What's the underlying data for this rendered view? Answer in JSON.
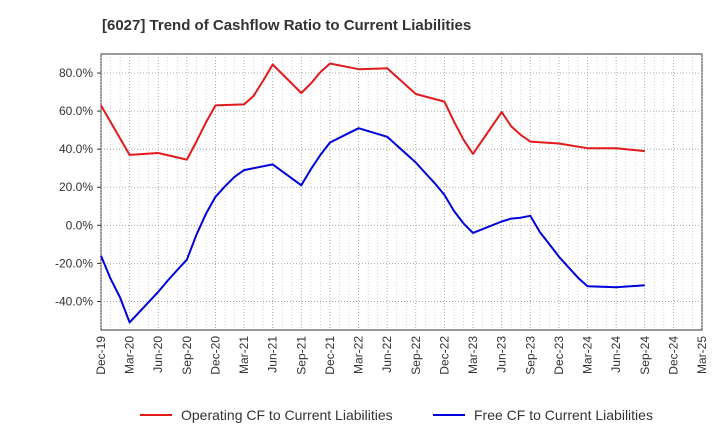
{
  "chart_data": {
    "type": "line",
    "title": "[6027]  Trend of Cashflow Ratio to Current Liabilities",
    "xlabel": "",
    "ylabel": "",
    "x_ticks": [
      "Dec-19",
      "Mar-20",
      "Jun-20",
      "Sep-20",
      "Dec-20",
      "Mar-21",
      "Jun-21",
      "Sep-21",
      "Dec-21",
      "Mar-22",
      "Jun-22",
      "Sep-22",
      "Dec-22",
      "Mar-23",
      "Jun-23",
      "Sep-23",
      "Dec-23",
      "Mar-24",
      "Jun-24",
      "Sep-24",
      "Dec-24",
      "Mar-25"
    ],
    "y_ticks": [
      "80.0%",
      "60.0%",
      "40.0%",
      "20.0%",
      "0.0%",
      "-20.0%",
      "-40.0%"
    ],
    "y_tick_values": [
      80,
      60,
      40,
      20,
      0,
      -20,
      -40
    ],
    "ylim": [
      -55,
      90
    ],
    "grid": true,
    "legend_position": "bottom",
    "series": [
      {
        "name": "Operating CF to Current Liabilities",
        "color": "#e31a1c",
        "x": [
          "Dec-19",
          "Mar-20",
          "Jun-20",
          "Sep-20",
          "Oct-20",
          "Nov-20",
          "Dec-20",
          "Mar-21",
          "Apr-21",
          "May-21",
          "Jun-21",
          "Sep-21",
          "Oct-21",
          "Nov-21",
          "Dec-21",
          "Mar-22",
          "Jun-22",
          "Sep-22",
          "Dec-22",
          "Jan-23",
          "Feb-23",
          "Mar-23",
          "Jun-23",
          "Jul-23",
          "Aug-23",
          "Sep-23",
          "Dec-23",
          "Mar-24",
          "Jun-24",
          "Sep-24"
        ],
        "values": [
          63,
          37,
          38,
          34.5,
          44,
          54,
          63,
          63.5,
          68,
          76,
          84.5,
          69.5,
          74.5,
          80.5,
          85,
          82,
          82.5,
          69,
          65,
          54.5,
          45,
          37.5,
          59.5,
          52,
          47.5,
          44,
          43,
          40.5,
          40.5,
          39
        ]
      },
      {
        "name": "Free CF to Current Liabilities",
        "color": "#0000dd",
        "x": [
          "Dec-19",
          "Jan-20",
          "Feb-20",
          "Mar-20",
          "Jun-20",
          "Jul-20",
          "Aug-20",
          "Sep-20",
          "Oct-20",
          "Nov-20",
          "Dec-20",
          "Jan-21",
          "Feb-21",
          "Mar-21",
          "Jun-21",
          "Sep-21",
          "Oct-21",
          "Nov-21",
          "Dec-21",
          "Mar-22",
          "Jun-22",
          "Sep-22",
          "Oct-22",
          "Nov-22",
          "Dec-22",
          "Jan-23",
          "Feb-23",
          "Mar-23",
          "Jun-23",
          "Jul-23",
          "Aug-23",
          "Sep-23",
          "Oct-23",
          "Nov-23",
          "Dec-23",
          "Jan-24",
          "Feb-24",
          "Mar-24",
          "Jun-24",
          "Sep-24"
        ],
        "values": [
          -16,
          -28,
          -38,
          -51,
          -35,
          -29,
          -23.5,
          -18,
          -5,
          6,
          15,
          20.5,
          25.5,
          29,
          32,
          21,
          29.5,
          37,
          43.5,
          51,
          46.5,
          33,
          27.5,
          22,
          16,
          7.5,
          1,
          -4,
          2,
          3.5,
          4,
          5,
          -3.5,
          -10,
          -16.5,
          -22,
          -27.5,
          -32,
          -32.5,
          -31.5
        ]
      }
    ]
  }
}
